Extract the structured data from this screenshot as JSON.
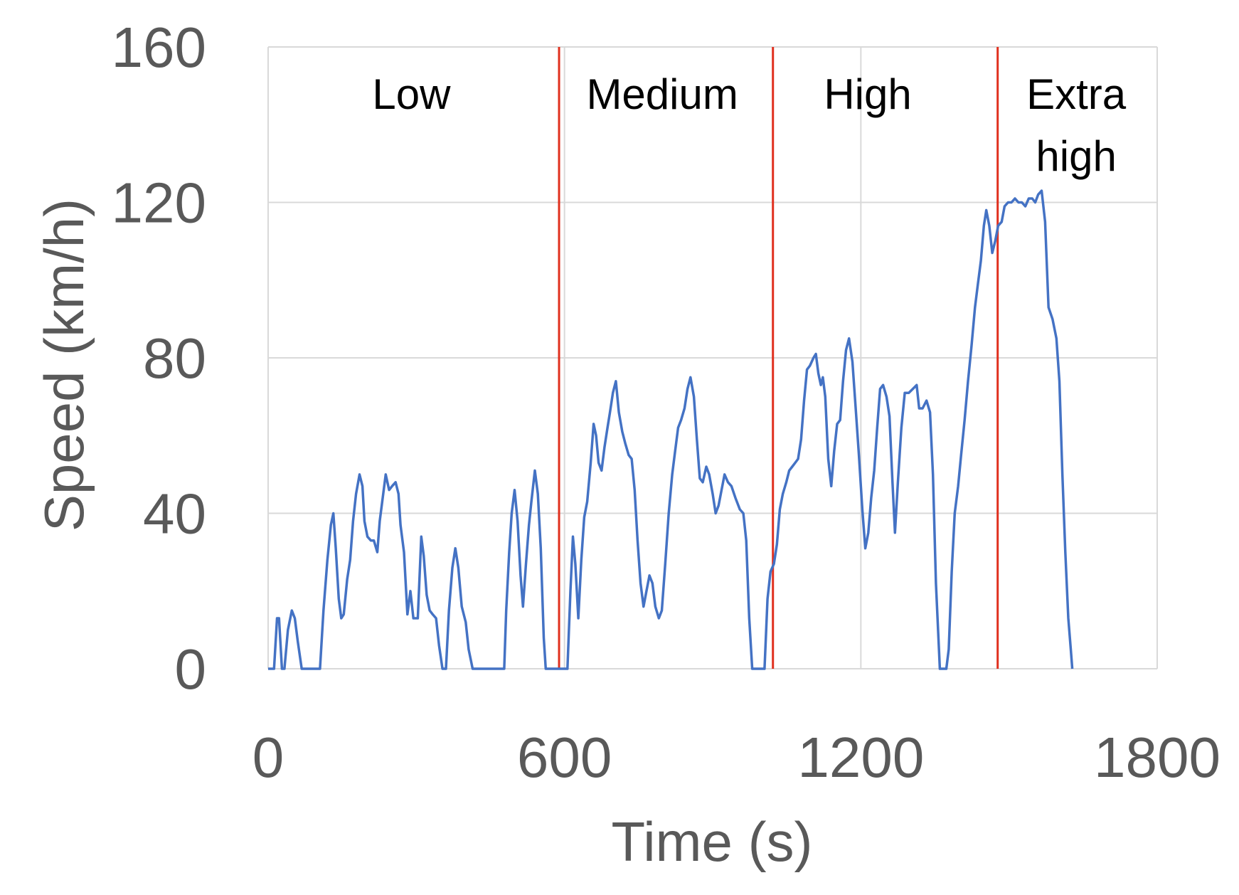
{
  "chart_data": {
    "type": "line",
    "title": "",
    "xlabel": "Time (s)",
    "ylabel": "Speed (km/h)",
    "xlim": [
      0,
      1800
    ],
    "ylim": [
      0,
      160
    ],
    "xticks": [
      0,
      600,
      1200,
      1800
    ],
    "xtick_labels": [
      "0",
      "600",
      "1200",
      "1800"
    ],
    "yticks": [
      0,
      40,
      80,
      120,
      160
    ],
    "ytick_labels": [
      "0",
      "40",
      "80",
      "120",
      "160"
    ],
    "grid": true,
    "legend": "none",
    "colors": {
      "series": "#4472c4",
      "divider": "#e0301e",
      "grid": "#d9d9d9",
      "text": "#595959"
    },
    "dividers": [
      589,
      1022,
      1477
    ],
    "phases": [
      {
        "lines": [
          "Low"
        ],
        "x_center": 290
      },
      {
        "lines": [
          "Medium"
        ],
        "x_center": 798
      },
      {
        "lines": [
          "High"
        ],
        "x_center": 1214
      },
      {
        "lines": [
          "Extra",
          "high"
        ],
        "x_center": 1636
      }
    ],
    "series": [
      {
        "values": [
          [
            0,
            0
          ],
          [
            12,
            0
          ],
          [
            18,
            13
          ],
          [
            22,
            13
          ],
          [
            28,
            0
          ],
          [
            33,
            0
          ],
          [
            40,
            10
          ],
          [
            48,
            15
          ],
          [
            54,
            13
          ],
          [
            60,
            7
          ],
          [
            68,
            0
          ],
          [
            105,
            0
          ],
          [
            112,
            15
          ],
          [
            120,
            28
          ],
          [
            127,
            37
          ],
          [
            132,
            40
          ],
          [
            137,
            31
          ],
          [
            143,
            18
          ],
          [
            148,
            13
          ],
          [
            153,
            14
          ],
          [
            160,
            23
          ],
          [
            166,
            28
          ],
          [
            172,
            38
          ],
          [
            178,
            45
          ],
          [
            185,
            50
          ],
          [
            191,
            47
          ],
          [
            195,
            38
          ],
          [
            201,
            34
          ],
          [
            208,
            33
          ],
          [
            214,
            33
          ],
          [
            221,
            30
          ],
          [
            226,
            38
          ],
          [
            232,
            44
          ],
          [
            238,
            50
          ],
          [
            245,
            46
          ],
          [
            251,
            47
          ],
          [
            258,
            48
          ],
          [
            264,
            45
          ],
          [
            268,
            37
          ],
          [
            275,
            30
          ],
          [
            282,
            14
          ],
          [
            288,
            20
          ],
          [
            294,
            13
          ],
          [
            303,
            13
          ],
          [
            310,
            34
          ],
          [
            315,
            29
          ],
          [
            321,
            19
          ],
          [
            327,
            15
          ],
          [
            333,
            14
          ],
          [
            340,
            13
          ],
          [
            346,
            6
          ],
          [
            353,
            0
          ],
          [
            360,
            0
          ],
          [
            366,
            15
          ],
          [
            373,
            26
          ],
          [
            379,
            31
          ],
          [
            385,
            26
          ],
          [
            392,
            16
          ],
          [
            400,
            12
          ],
          [
            406,
            5
          ],
          [
            414,
            0
          ],
          [
            478,
            0
          ],
          [
            482,
            15
          ],
          [
            488,
            30
          ],
          [
            493,
            40
          ],
          [
            499,
            46
          ],
          [
            505,
            38
          ],
          [
            511,
            24
          ],
          [
            516,
            16
          ],
          [
            522,
            27
          ],
          [
            528,
            37
          ],
          [
            533,
            43
          ],
          [
            540,
            51
          ],
          [
            546,
            45
          ],
          [
            552,
            31
          ],
          [
            558,
            8
          ],
          [
            562,
            0
          ],
          [
            606,
            0
          ],
          [
            612,
            20
          ],
          [
            617,
            34
          ],
          [
            622,
            27
          ],
          [
            628,
            13
          ],
          [
            634,
            28
          ],
          [
            640,
            39
          ],
          [
            646,
            43
          ],
          [
            653,
            53
          ],
          [
            659,
            63
          ],
          [
            664,
            60
          ],
          [
            669,
            53
          ],
          [
            675,
            51
          ],
          [
            681,
            57
          ],
          [
            687,
            62
          ],
          [
            692,
            66
          ],
          [
            698,
            71
          ],
          [
            704,
            74
          ],
          [
            710,
            66
          ],
          [
            717,
            61
          ],
          [
            723,
            58
          ],
          [
            730,
            55
          ],
          [
            736,
            54
          ],
          [
            742,
            46
          ],
          [
            748,
            33
          ],
          [
            754,
            22
          ],
          [
            760,
            16
          ],
          [
            766,
            20
          ],
          [
            772,
            24
          ],
          [
            778,
            22
          ],
          [
            784,
            16
          ],
          [
            791,
            13
          ],
          [
            797,
            15
          ],
          [
            804,
            27
          ],
          [
            811,
            40
          ],
          [
            818,
            50
          ],
          [
            824,
            56
          ],
          [
            830,
            62
          ],
          [
            836,
            64
          ],
          [
            843,
            67
          ],
          [
            849,
            72
          ],
          [
            855,
            75
          ],
          [
            862,
            70
          ],
          [
            868,
            59
          ],
          [
            874,
            49
          ],
          [
            880,
            48
          ],
          [
            887,
            52
          ],
          [
            893,
            50
          ],
          [
            900,
            45
          ],
          [
            906,
            40
          ],
          [
            912,
            42
          ],
          [
            918,
            46
          ],
          [
            924,
            50
          ],
          [
            931,
            48
          ],
          [
            938,
            47
          ],
          [
            946,
            44
          ],
          [
            955,
            41
          ],
          [
            962,
            40
          ],
          [
            968,
            33
          ],
          [
            974,
            13
          ],
          [
            980,
            0
          ],
          [
            1005,
            0
          ],
          [
            1011,
            18
          ],
          [
            1017,
            25
          ],
          [
            1024,
            27
          ],
          [
            1030,
            32
          ],
          [
            1036,
            41
          ],
          [
            1042,
            45
          ],
          [
            1049,
            48
          ],
          [
            1055,
            51
          ],
          [
            1061,
            52
          ],
          [
            1067,
            53
          ],
          [
            1073,
            54
          ],
          [
            1079,
            59
          ],
          [
            1085,
            69
          ],
          [
            1091,
            77
          ],
          [
            1097,
            78
          ],
          [
            1104,
            80
          ],
          [
            1109,
            81
          ],
          [
            1114,
            76
          ],
          [
            1119,
            73
          ],
          [
            1123,
            75
          ],
          [
            1128,
            70
          ],
          [
            1134,
            54
          ],
          [
            1140,
            47
          ],
          [
            1146,
            56
          ],
          [
            1152,
            63
          ],
          [
            1158,
            64
          ],
          [
            1164,
            74
          ],
          [
            1170,
            82
          ],
          [
            1176,
            85
          ],
          [
            1183,
            79
          ],
          [
            1189,
            68
          ],
          [
            1196,
            55
          ],
          [
            1203,
            41
          ],
          [
            1209,
            31
          ],
          [
            1215,
            35
          ],
          [
            1221,
            44
          ],
          [
            1227,
            51
          ],
          [
            1233,
            62
          ],
          [
            1239,
            72
          ],
          [
            1245,
            73
          ],
          [
            1252,
            70
          ],
          [
            1258,
            65
          ],
          [
            1264,
            48
          ],
          [
            1269,
            35
          ],
          [
            1275,
            48
          ],
          [
            1282,
            62
          ],
          [
            1289,
            71
          ],
          [
            1297,
            71
          ],
          [
            1305,
            72
          ],
          [
            1313,
            73
          ],
          [
            1318,
            67
          ],
          [
            1325,
            67
          ],
          [
            1333,
            69
          ],
          [
            1340,
            66
          ],
          [
            1346,
            50
          ],
          [
            1352,
            22
          ],
          [
            1360,
            0
          ],
          [
            1373,
            0
          ],
          [
            1378,
            5
          ],
          [
            1384,
            25
          ],
          [
            1390,
            40
          ],
          [
            1397,
            47
          ],
          [
            1403,
            55
          ],
          [
            1410,
            64
          ],
          [
            1417,
            74
          ],
          [
            1424,
            83
          ],
          [
            1431,
            93
          ],
          [
            1437,
            99
          ],
          [
            1443,
            105
          ],
          [
            1449,
            114
          ],
          [
            1454,
            118
          ],
          [
            1460,
            114
          ],
          [
            1466,
            107
          ],
          [
            1472,
            110
          ],
          [
            1478,
            114
          ],
          [
            1485,
            115
          ],
          [
            1491,
            119
          ],
          [
            1498,
            120
          ],
          [
            1505,
            120
          ],
          [
            1512,
            121
          ],
          [
            1519,
            120
          ],
          [
            1526,
            120
          ],
          [
            1533,
            119
          ],
          [
            1540,
            121
          ],
          [
            1547,
            121
          ],
          [
            1553,
            120
          ],
          [
            1559,
            122
          ],
          [
            1566,
            123
          ],
          [
            1573,
            115
          ],
          [
            1580,
            93
          ],
          [
            1588,
            90
          ],
          [
            1596,
            85
          ],
          [
            1602,
            74
          ],
          [
            1608,
            50
          ],
          [
            1614,
            30
          ],
          [
            1620,
            13
          ],
          [
            1625,
            5
          ],
          [
            1628,
            0
          ]
        ]
      }
    ]
  }
}
